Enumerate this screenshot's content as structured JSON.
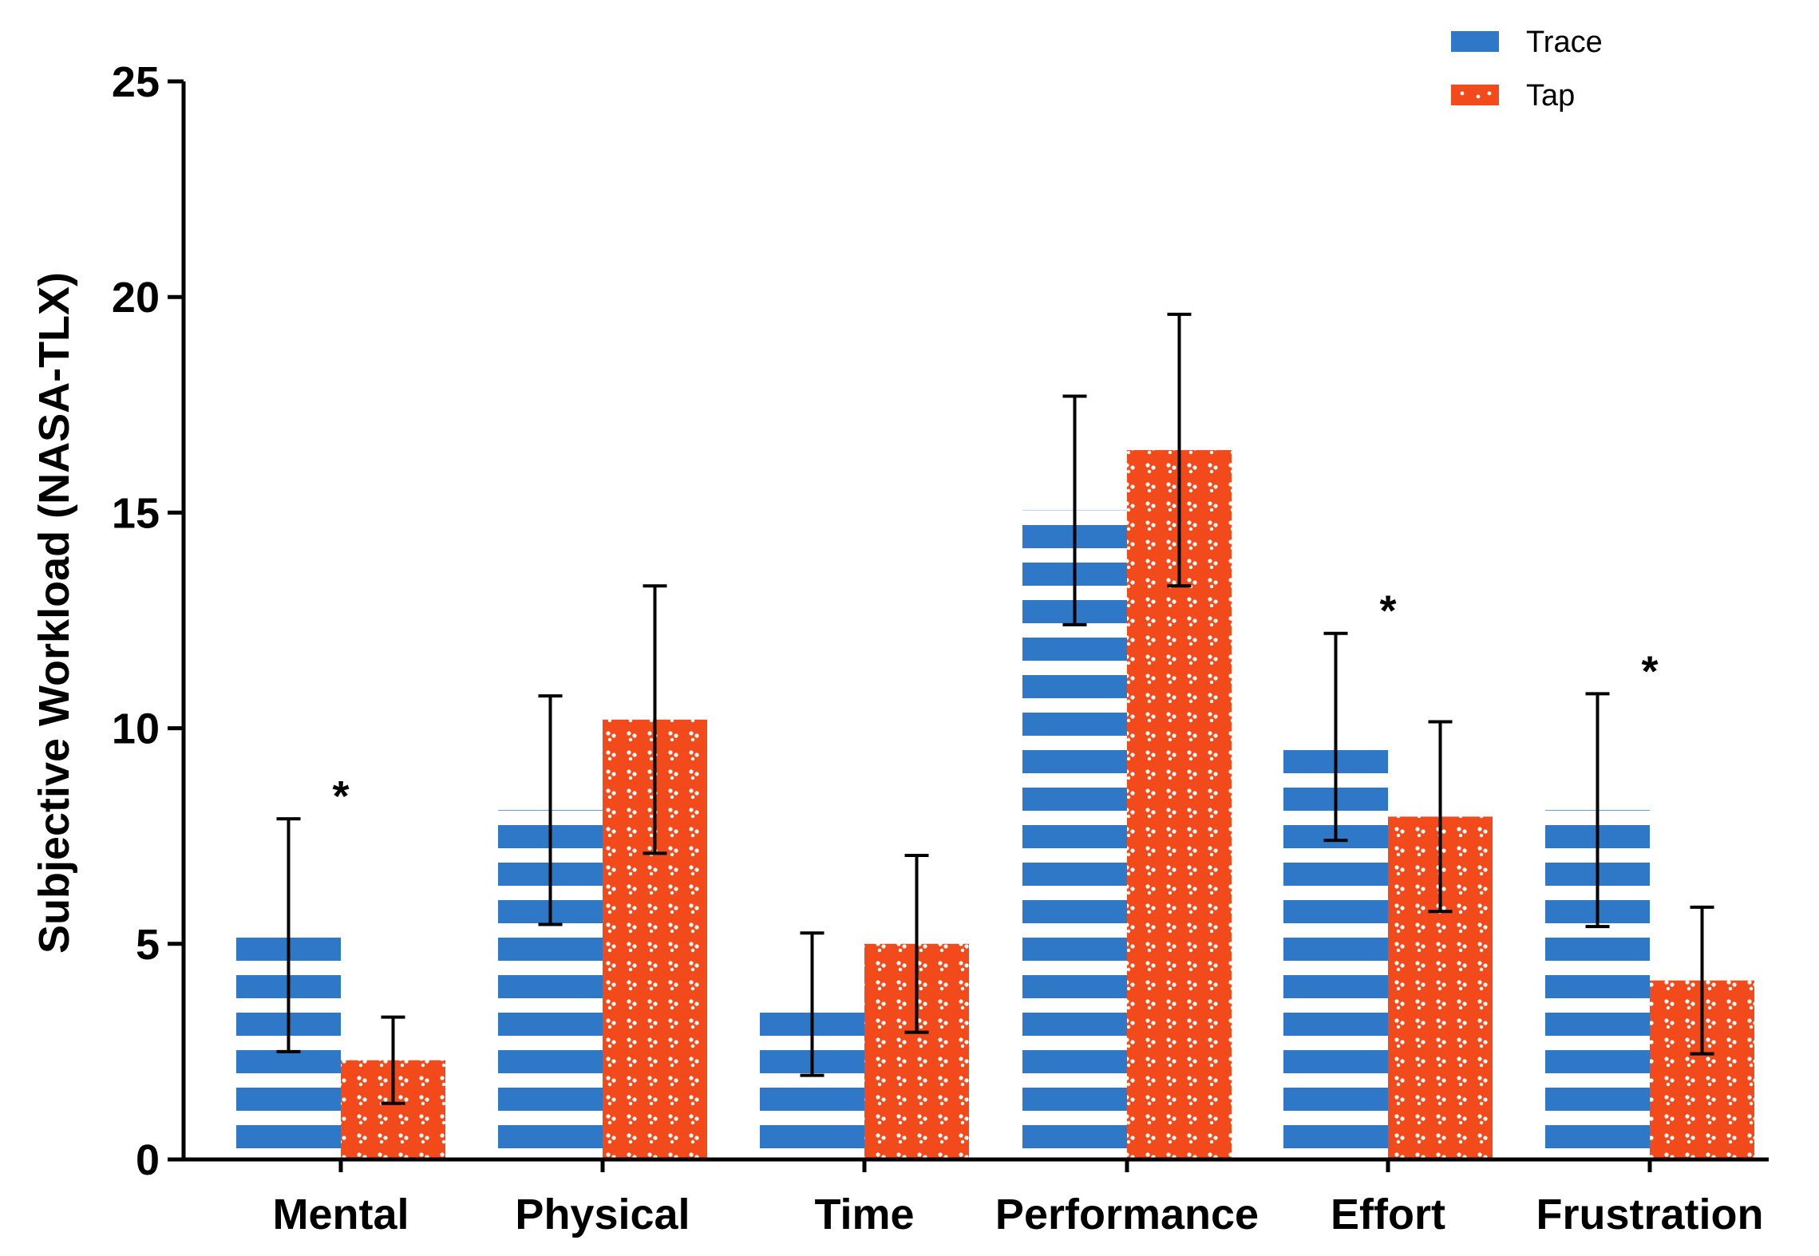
{
  "chart_data": {
    "type": "bar",
    "title": "",
    "xlabel": "",
    "ylabel": "Subjective Workload (NASA-TLX)",
    "ylim": [
      0,
      25
    ],
    "yticks": [
      "0",
      "5",
      "10",
      "15",
      "20",
      "25"
    ],
    "ytick_values": [
      0,
      5,
      10,
      15,
      20,
      25
    ],
    "categories": [
      "Mental",
      "Physical",
      "Time",
      "Performance",
      "Effort",
      "Frustration"
    ],
    "series": [
      {
        "name": "Trace",
        "color": "#2f78c8",
        "pattern": "horizontal-stripes",
        "values": [
          5.2,
          8.1,
          3.6,
          15.05,
          9.8,
          8.1
        ],
        "error": [
          2.7,
          2.65,
          1.65,
          2.65,
          2.4,
          2.7
        ]
      },
      {
        "name": "Tap",
        "color": "#f24a1a",
        "pattern": "dots",
        "values": [
          2.3,
          10.2,
          5.0,
          16.45,
          7.95,
          4.15
        ],
        "error": [
          1.0,
          3.1,
          2.05,
          3.15,
          2.2,
          1.7
        ]
      }
    ],
    "significance": [
      {
        "category_index": 0,
        "text": "*"
      },
      {
        "category_index": 4,
        "text": "*"
      },
      {
        "category_index": 5,
        "text": "*"
      }
    ],
    "legend": {
      "position": "top-right"
    },
    "grid": false
  }
}
